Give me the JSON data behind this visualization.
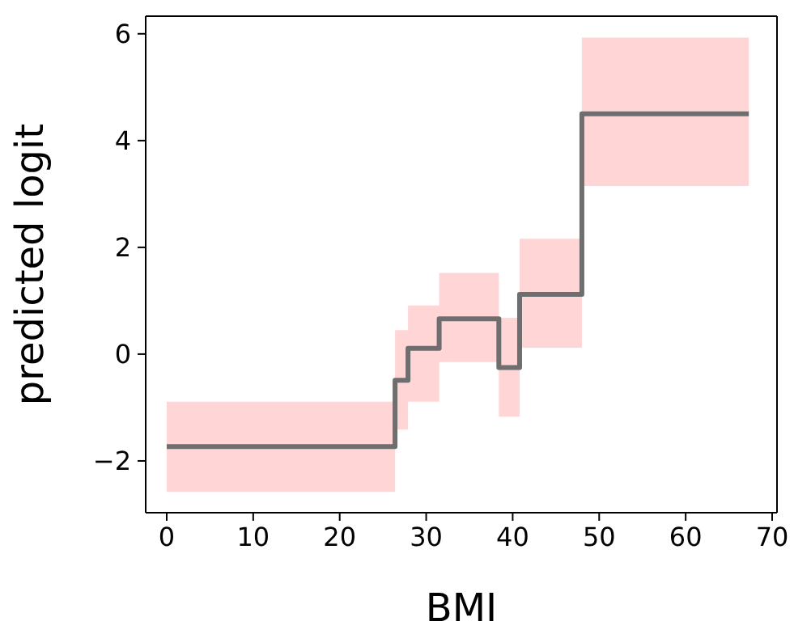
{
  "chart_data": {
    "type": "step",
    "xlabel": "BMI",
    "ylabel": "predicted logit",
    "xlim": [
      -2.43,
      70.56
    ],
    "ylim": [
      -2.97,
      6.33
    ],
    "xticks": [
      0,
      10,
      20,
      30,
      40,
      50,
      60,
      70
    ],
    "yticks": [
      {
        "value": -2,
        "label": "−2"
      },
      0,
      2,
      4,
      6
    ],
    "marker": "none",
    "line_style": "solid",
    "series": [
      {
        "color": "#6e6e6e",
        "x": [
          0,
          26.4,
          27.9,
          31.5,
          38.4,
          40.8,
          48.0,
          67.3
        ],
        "values": [
          -1.73,
          -0.49,
          0.11,
          0.66,
          -0.25,
          1.12,
          4.5,
          4.5
        ],
        "lower": [
          -2.58,
          -1.41,
          -0.89,
          -0.15,
          -1.17,
          0.12,
          3.15,
          3.15
        ],
        "upper": [
          -0.89,
          0.45,
          0.91,
          1.52,
          0.68,
          2.16,
          5.93,
          5.93
        ]
      }
    ]
  }
}
